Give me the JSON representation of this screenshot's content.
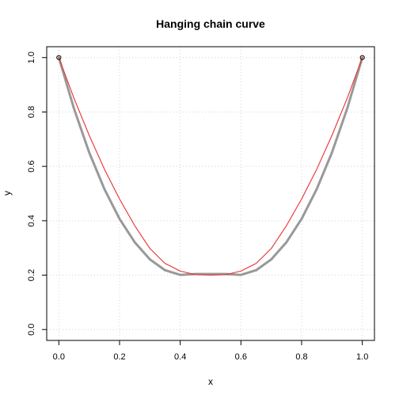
{
  "chart_data": {
    "type": "line",
    "title": "Hanging chain curve",
    "xlabel": "x",
    "ylabel": "y",
    "xlim": [
      -0.04,
      1.04
    ],
    "ylim": [
      -0.04,
      1.04
    ],
    "xticks": [
      0,
      0.2,
      0.4,
      0.6,
      0.8,
      1
    ],
    "yticks": [
      0,
      0.2,
      0.4,
      0.6,
      0.8,
      1
    ],
    "xtick_labels": [
      "0.0",
      "0.2",
      "0.4",
      "0.6",
      "0.8",
      "1.0"
    ],
    "ytick_labels": [
      "0.0",
      "0.2",
      "0.4",
      "0.6",
      "0.8",
      "1.0"
    ],
    "grid": true,
    "series": [
      {
        "color": "#999999",
        "x": [
          0,
          0.05,
          0.1,
          0.15,
          0.2,
          0.25,
          0.3,
          0.35,
          0.4,
          0.45,
          0.5,
          0.55,
          0.6,
          0.65,
          0.7,
          0.75,
          0.8,
          0.85,
          0.9,
          0.95,
          1
        ],
        "y": [
          1.0,
          0.812,
          0.651,
          0.517,
          0.407,
          0.321,
          0.258,
          0.218,
          0.201,
          0.204,
          0.204,
          0.204,
          0.201,
          0.218,
          0.258,
          0.321,
          0.407,
          0.517,
          0.651,
          0.812,
          1.0
        ]
      },
      {
        "color": "#e8302e",
        "x": [
          0,
          0.05,
          0.1,
          0.15,
          0.2,
          0.25,
          0.3,
          0.35,
          0.4,
          0.45,
          0.5,
          0.55,
          0.6,
          0.65,
          0.7,
          0.75,
          0.8,
          0.85,
          0.9,
          0.95,
          1
        ],
        "y": [
          1.0,
          0.85,
          0.714,
          0.59,
          0.48,
          0.382,
          0.298,
          0.243,
          0.215,
          0.202,
          0.2,
          0.202,
          0.215,
          0.243,
          0.298,
          0.382,
          0.48,
          0.59,
          0.714,
          0.85,
          1.0
        ]
      }
    ],
    "points": [
      {
        "x": 0,
        "y": 1
      },
      {
        "x": 1,
        "y": 1
      }
    ]
  }
}
